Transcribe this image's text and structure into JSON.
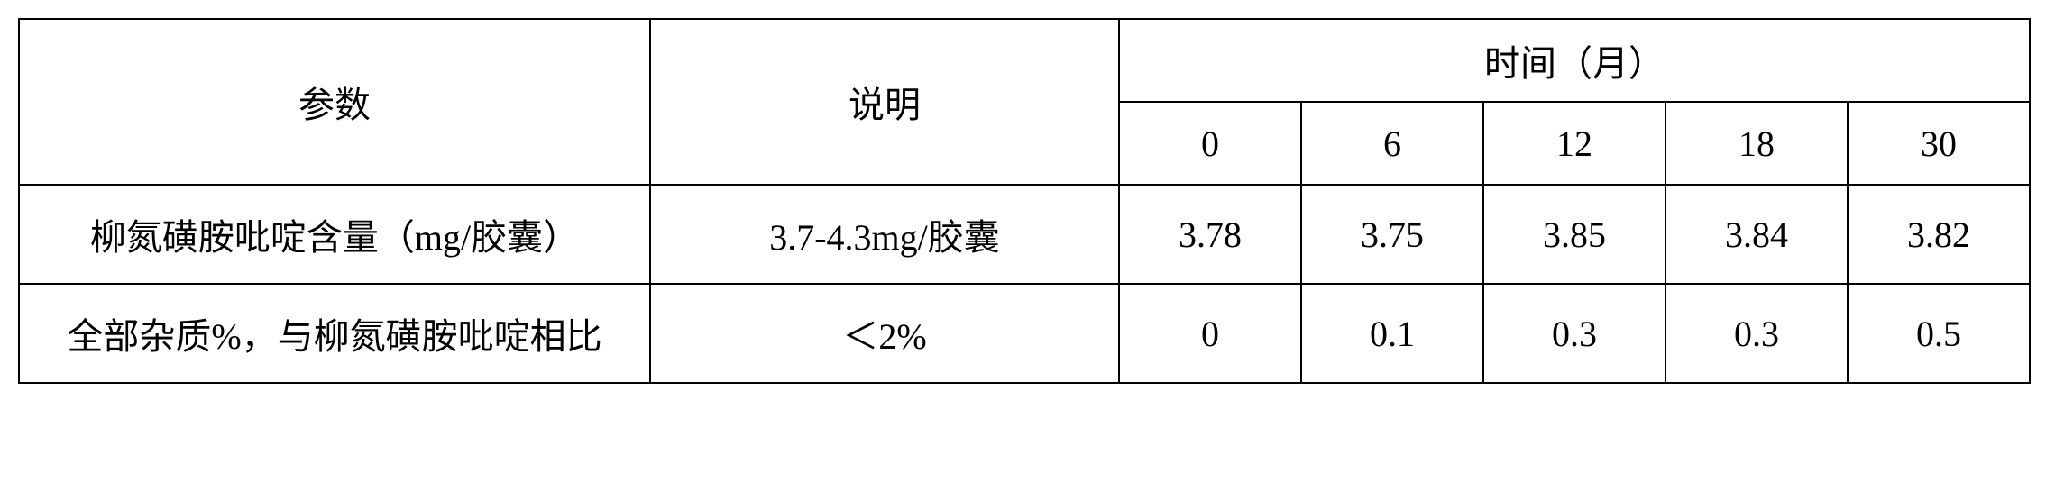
{
  "table": {
    "header": {
      "param": "参数",
      "desc": "说明",
      "time_group": "时间（月）",
      "times": [
        "0",
        "6",
        "12",
        "18",
        "30"
      ]
    },
    "rows": [
      {
        "param": "柳氮磺胺吡啶含量（mg/胶囊）",
        "desc": "3.7-4.3mg/胶囊",
        "values": [
          "3.78",
          "3.75",
          "3.85",
          "3.84",
          "3.82"
        ]
      },
      {
        "param": "全部杂质%，与柳氮磺胺吡啶相比",
        "desc": "＜2%",
        "values": [
          "0",
          "0.1",
          "0.3",
          "0.3",
          "0.5"
        ]
      }
    ]
  },
  "style": {
    "font_family": "SimSun",
    "font_size_pt": 30,
    "border_color": "#000000",
    "background_color": "#ffffff",
    "text_color": "#000000"
  }
}
